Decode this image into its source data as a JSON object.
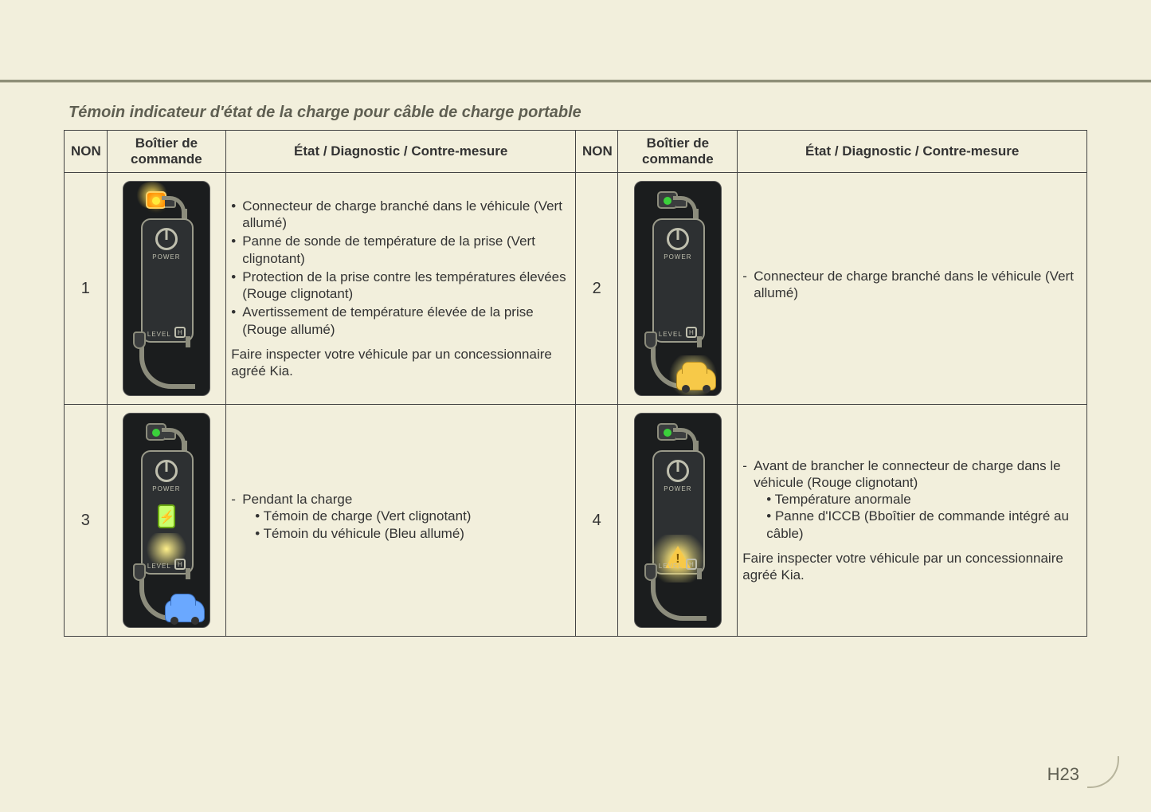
{
  "page": {
    "title": "Témoin indicateur d'état de la charge pour câble de charge portable",
    "number": "H23",
    "background_color": "#f2efdc",
    "rule_color": "#8f8f78"
  },
  "table": {
    "headers": {
      "num": "NON",
      "box": "Boîtier de commande",
      "desc": "État / Diagnostic / Contre-mesure"
    },
    "rows": [
      {
        "id": "1",
        "variant": "v1",
        "bullets": [
          "Connecteur de charge branché dans le véhicule (Vert allumé)",
          "Panne de sonde de température de la prise (Vert clignotant)",
          "Protection de la prise contre les températures élevées (Rouge clignotant)",
          "Avertissement de température élevée de la prise (Rouge allumé)"
        ],
        "footnote": "Faire inspecter votre véhicule par un concessionnaire agréé Kia."
      },
      {
        "id": "2",
        "variant": "v2",
        "dash": "Connecteur de charge branché dans le véhicule (Vert allumé)"
      },
      {
        "id": "3",
        "variant": "v3",
        "dash": "Pendant la charge",
        "sub": [
          "• Témoin de charge (Vert clignotant)",
          "• Témoin du véhicule (Bleu allumé)"
        ]
      },
      {
        "id": "4",
        "variant": "v4",
        "dash": "Avant de brancher le connecteur de charge dans le véhicule (Rouge clignotant)",
        "sub": [
          "• Température anormale",
          "• Panne d'ICCB (Bboîtier de commande intégré au câble)"
        ],
        "footnote": "Faire inspecter votre véhicule par un concessionnaire agréé Kia."
      }
    ],
    "box_labels": {
      "power": "POWER",
      "level": "LEVEL",
      "h": "H"
    }
  },
  "colors": {
    "text": "#333333",
    "title": "#5f5f52",
    "border": "#444444",
    "icon_body": "#2d3032",
    "icon_outline": "#9a9a8a",
    "led_green": "#3bd13b",
    "car_yellow": "#f7c948",
    "car_blue": "#6aa8ff",
    "glow": "#fff08a"
  }
}
